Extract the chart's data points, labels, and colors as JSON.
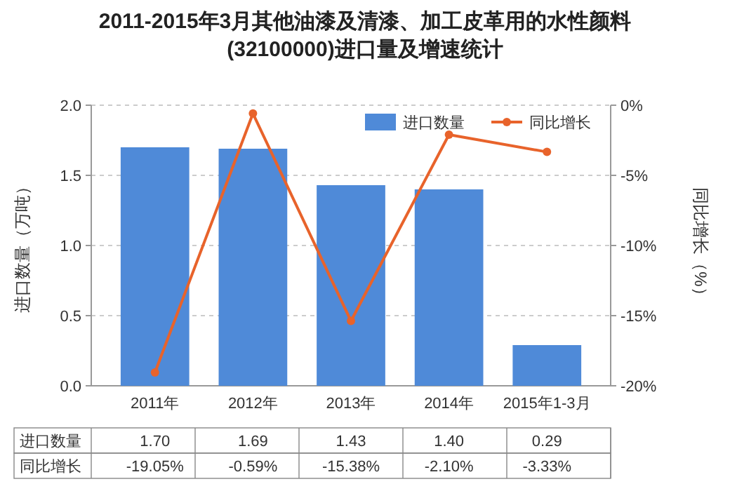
{
  "chart_data": {
    "type": "bar",
    "title": "2011-2015年3月其他油漆及清漆、加工皮革用的水性颜料(32100000)进口量及增速统计",
    "ylabel": "进口数量（万吨）",
    "y2label": "同比增长（%）",
    "categories": [
      "2011年",
      "2012年",
      "2013年",
      "2014年",
      "2015年1-3月"
    ],
    "series": [
      {
        "name": "进口数量",
        "color": "#4f8ad8",
        "values": [
          1.7,
          1.69,
          1.43,
          1.4,
          0.29
        ],
        "value_labels": [
          "1.70",
          "1.69",
          "1.43",
          "1.40",
          "0.29"
        ]
      },
      {
        "name": "同比增长",
        "type": "line",
        "axis": "y2",
        "color": "#e8632b",
        "values": [
          -19.05,
          -0.59,
          -15.38,
          -2.1,
          -3.33
        ],
        "value_labels": [
          "-19.05%",
          "-0.59%",
          "-15.38%",
          "-2.10%",
          "-3.33%"
        ]
      }
    ],
    "ylim": [
      0,
      2
    ],
    "yticks": [
      {
        "value": 0,
        "label": "0.0"
      },
      {
        "value": 0.5,
        "label": "0.5"
      },
      {
        "value": 1,
        "label": "1.0"
      },
      {
        "value": 1.5,
        "label": "1.5"
      },
      {
        "value": 2,
        "label": "2.0"
      }
    ],
    "y2lim": [
      -20,
      0
    ],
    "y2ticks": [
      {
        "value": -20,
        "label": "-20%"
      },
      {
        "value": -15,
        "label": "-15%"
      },
      {
        "value": -10,
        "label": "-10%"
      },
      {
        "value": -5,
        "label": "-5%"
      },
      {
        "value": 0,
        "label": "0%"
      }
    ],
    "grid": "y",
    "legend": "top right",
    "marker": "circle",
    "data_labels": true
  }
}
